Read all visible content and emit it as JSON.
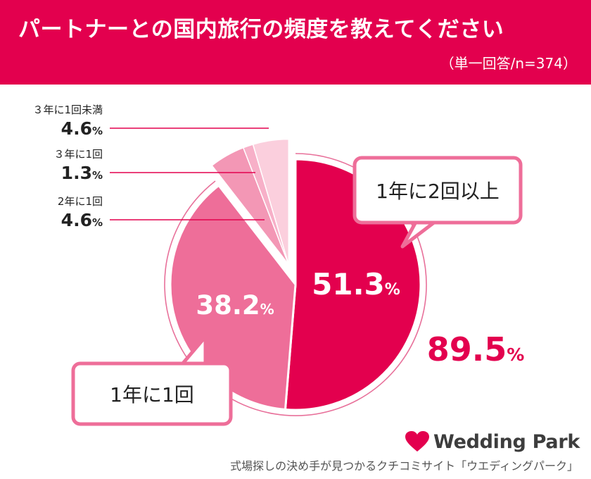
{
  "header": {
    "title": "パートナーとの国内旅行の頻度を教えてください",
    "subtitle": "（単一回答/n=374）"
  },
  "brand": {
    "name": "Wedding Park",
    "tagline": "式場探しの決め手が見つかるクチコミサイト「ウエディングパーク」"
  },
  "colors": {
    "header_bg": "#e3004e",
    "slice_1": "#e3004e",
    "slice_2": "#ee6e99",
    "slice_3": "#f397b5",
    "slice_4": "#f7b0c8",
    "slice_5": "#fbcfdd",
    "combined_text": "#e3004e"
  },
  "chart_data": {
    "type": "pie",
    "slices": [
      {
        "label": "1年に2回以上",
        "value": 51.3,
        "value_text": "51.3",
        "unit": "%"
      },
      {
        "label": "1年に1回",
        "value": 38.2,
        "value_text": "38.2",
        "unit": "%"
      },
      {
        "label": "2年に1回",
        "value": 4.6,
        "value_text": "4.6",
        "unit": "%"
      },
      {
        "label": "３年に1回",
        "value": 1.3,
        "value_text": "1.3",
        "unit": "%"
      },
      {
        "label": "３年に1回未満",
        "value": 4.6,
        "value_text": "4.6",
        "unit": "%"
      }
    ],
    "combined": {
      "value": 89.5,
      "value_text": "89.5",
      "unit": "%"
    }
  }
}
